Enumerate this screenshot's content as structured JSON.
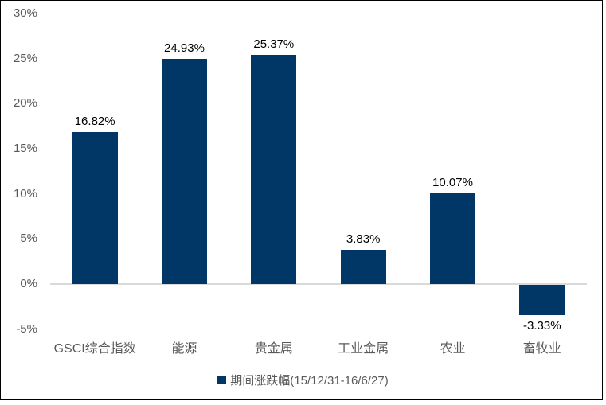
{
  "chart_data": {
    "type": "bar",
    "title": "",
    "categories": [
      "GSCI综合指数",
      "能源",
      "贵金属",
      "工业金属",
      "农业",
      "畜牧业"
    ],
    "values": [
      16.82,
      24.93,
      25.37,
      3.83,
      10.07,
      -3.33
    ],
    "value_labels": [
      "16.82%",
      "24.93%",
      "25.37%",
      "3.83%",
      "10.07%",
      "-3.33%"
    ],
    "series": [
      {
        "name": "期间涨跌幅(15/12/31-16/6/27)",
        "values": [
          16.82,
          24.93,
          25.37,
          3.83,
          10.07,
          -3.33
        ]
      }
    ],
    "xlabel": "",
    "ylabel": "",
    "ylim": [
      -5,
      30
    ],
    "ytick_step": 5,
    "ytick_labels": [
      "30%",
      "25%",
      "20%",
      "15%",
      "10%",
      "5%",
      "0%",
      "-5%"
    ],
    "grid": false,
    "legend_position": "bottom",
    "bar_color": "#003767"
  },
  "legend": {
    "marker_color": "#003767",
    "label": "期间涨跌幅(15/12/31-16/6/27)"
  },
  "colors": {
    "bar": "#003767",
    "axis_text": "#595959",
    "data_label": "#000000",
    "zero_line": "#d9d9d9",
    "frame": "#000000"
  }
}
